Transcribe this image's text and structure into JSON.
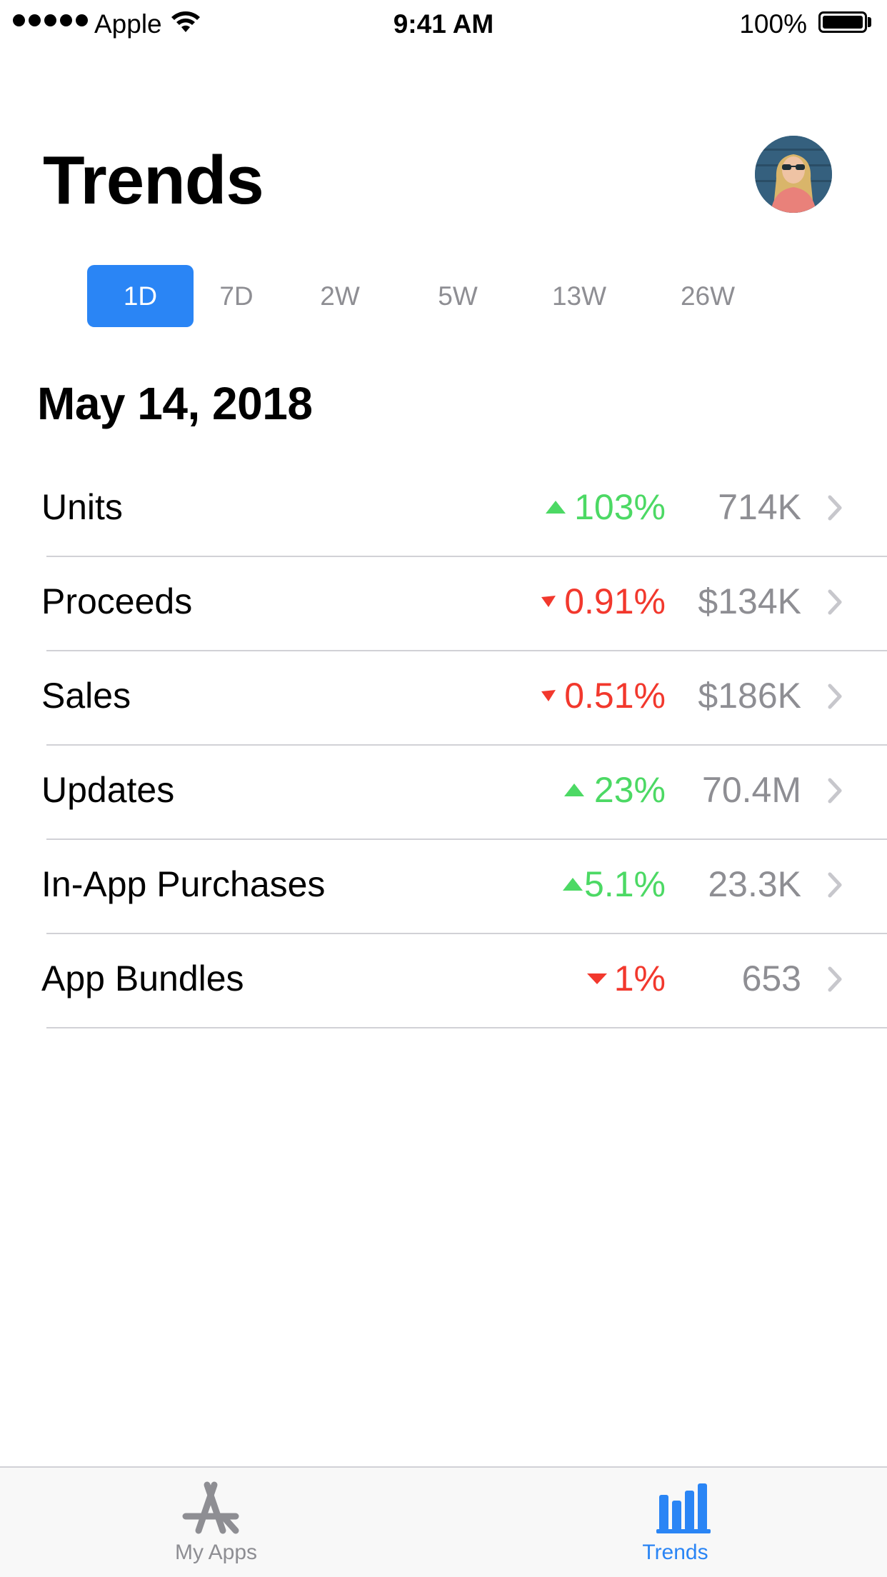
{
  "status_bar": {
    "carrier": "Apple",
    "time": "9:41 AM",
    "battery": "100%"
  },
  "header": {
    "title": "Trends"
  },
  "periods": [
    {
      "label": "1D",
      "active": true
    },
    {
      "label": "7D",
      "active": false
    },
    {
      "label": "2W",
      "active": false
    },
    {
      "label": "5W",
      "active": false
    },
    {
      "label": "13W",
      "active": false
    },
    {
      "label": "26W",
      "active": false
    }
  ],
  "date": "May 14, 2018",
  "metrics": [
    {
      "label": "Units",
      "change": "103%",
      "direction": "up",
      "value": "714K"
    },
    {
      "label": "Proceeds",
      "change": "0.91%",
      "direction": "down",
      "value": "$134K"
    },
    {
      "label": "Sales",
      "change": "0.51%",
      "direction": "down",
      "value": "$186K"
    },
    {
      "label": "Updates",
      "change": "23%",
      "direction": "up",
      "value": "70.4M"
    },
    {
      "label": "In-App Purchases",
      "change": "5.1%",
      "direction": "up",
      "value": "23.3K"
    },
    {
      "label": "App Bundles",
      "change": "1%",
      "direction": "down",
      "value": "653"
    }
  ],
  "tab_bar": {
    "tabs": [
      {
        "label": "My Apps",
        "icon": "app-store-icon",
        "active": false
      },
      {
        "label": "Trends",
        "icon": "bar-chart-icon",
        "active": true
      }
    ]
  },
  "colors": {
    "accent": "#2a85f5",
    "up": "#4cd964",
    "down": "#f2382d",
    "secondary_text": "#8e8e93"
  }
}
